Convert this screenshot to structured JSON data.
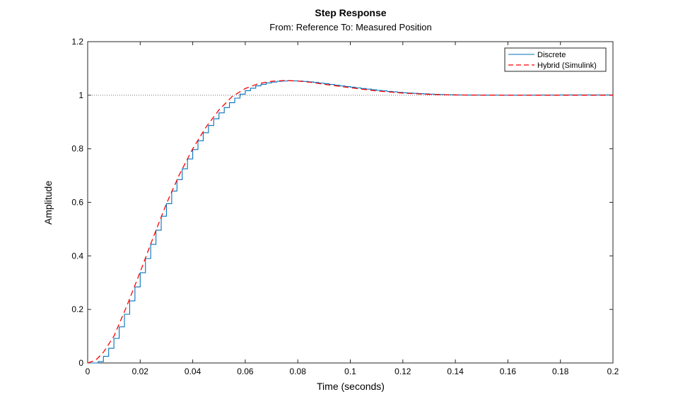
{
  "chart_data": {
    "type": "line",
    "title": "Step Response",
    "subtitle": "From: Reference  To: Measured Position",
    "xlabel": "Time (seconds)",
    "ylabel": "Amplitude",
    "xlim": [
      0,
      0.2
    ],
    "ylim": [
      0,
      1.2
    ],
    "xticks": [
      0,
      0.02,
      0.04,
      0.06,
      0.08,
      0.1,
      0.12,
      0.14,
      0.16,
      0.18,
      0.2
    ],
    "xtick_labels": [
      "0",
      "0.02",
      "0.04",
      "0.06",
      "0.08",
      "0.1",
      "0.12",
      "0.14",
      "0.16",
      "0.18",
      "0.2"
    ],
    "yticks": [
      0,
      0.2,
      0.4,
      0.6,
      0.8,
      1,
      1.2
    ],
    "ytick_labels": [
      "0",
      "0.2",
      "0.4",
      "0.6",
      "0.8",
      "1",
      "1.2"
    ],
    "grid": false,
    "reference_line": 1,
    "legend_position": "top-right",
    "series": [
      {
        "name": "Discrete",
        "style": "stairs",
        "color": "#0072bd",
        "sample_time": 0.002,
        "x": [
          0,
          0.002,
          0.004,
          0.006,
          0.008,
          0.01,
          0.012,
          0.014,
          0.016,
          0.018,
          0.02,
          0.022,
          0.024,
          0.026,
          0.028,
          0.03,
          0.032,
          0.034,
          0.036,
          0.038,
          0.04,
          0.042,
          0.044,
          0.046,
          0.048,
          0.05,
          0.052,
          0.054,
          0.056,
          0.058,
          0.06,
          0.064,
          0.068,
          0.072,
          0.076,
          0.08,
          0.085,
          0.09,
          0.095,
          0.1,
          0.11,
          0.12,
          0.13,
          0.14,
          0.16,
          0.18,
          0.2
        ],
        "y": [
          0,
          0,
          0.005,
          0.025,
          0.055,
          0.092,
          0.135,
          0.182,
          0.232,
          0.284,
          0.337,
          0.39,
          0.443,
          0.496,
          0.548,
          0.595,
          0.642,
          0.685,
          0.725,
          0.762,
          0.797,
          0.83,
          0.86,
          0.887,
          0.912,
          0.934,
          0.954,
          0.972,
          0.989,
          1.004,
          1.017,
          1.035,
          1.046,
          1.052,
          1.054,
          1.053,
          1.049,
          1.043,
          1.036,
          1.03,
          1.018,
          1.009,
          1.004,
          1.001,
          1.0,
          1.001,
          1.001
        ]
      },
      {
        "name": "Hybrid (Simulink)",
        "style": "dashed",
        "color": "#ff0000",
        "x": [
          0,
          0.003,
          0.006,
          0.01,
          0.015,
          0.02,
          0.025,
          0.03,
          0.035,
          0.04,
          0.045,
          0.05,
          0.055,
          0.06,
          0.065,
          0.07,
          0.075,
          0.08,
          0.085,
          0.09,
          0.1,
          0.11,
          0.12,
          0.13,
          0.14,
          0.16,
          0.18,
          0.2
        ],
        "y": [
          0,
          0.01,
          0.04,
          0.1,
          0.215,
          0.34,
          0.47,
          0.595,
          0.705,
          0.8,
          0.88,
          0.945,
          0.995,
          1.025,
          1.043,
          1.052,
          1.055,
          1.053,
          1.048,
          1.041,
          1.028,
          1.016,
          1.008,
          1.003,
          1.001,
          1.0,
          1.0,
          1.0
        ]
      }
    ]
  }
}
